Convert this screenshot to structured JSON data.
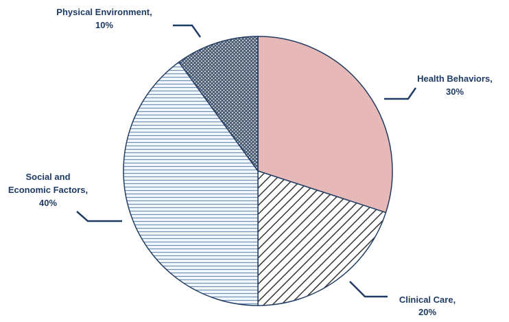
{
  "chart_data": {
    "type": "pie",
    "start_angle_deg": 0,
    "direction": "clockwise",
    "slices": [
      {
        "label": "Health Behaviors,",
        "value_label": "30%",
        "value": 30,
        "fill": "#e6b8b7",
        "pattern": "solid"
      },
      {
        "label": "Clinical Care,",
        "value_label": "20%",
        "value": 20,
        "fill": "#ffffff",
        "pattern": "diagonal-hatch"
      },
      {
        "label": "Social and Economic Factors,",
        "value_label": "40%",
        "value": 40,
        "fill": "#ffffff",
        "pattern": "horizontal-lines"
      },
      {
        "label": "Physical Environment,",
        "value_label": "10%",
        "value": 10,
        "fill": "#4a5a6e",
        "pattern": "dotted"
      }
    ],
    "colors": {
      "outline": "#1f3b63",
      "label_text": "#1f3b63",
      "hatch_lines": "#333333",
      "horizontal_lines": "#6f8fb8"
    }
  }
}
